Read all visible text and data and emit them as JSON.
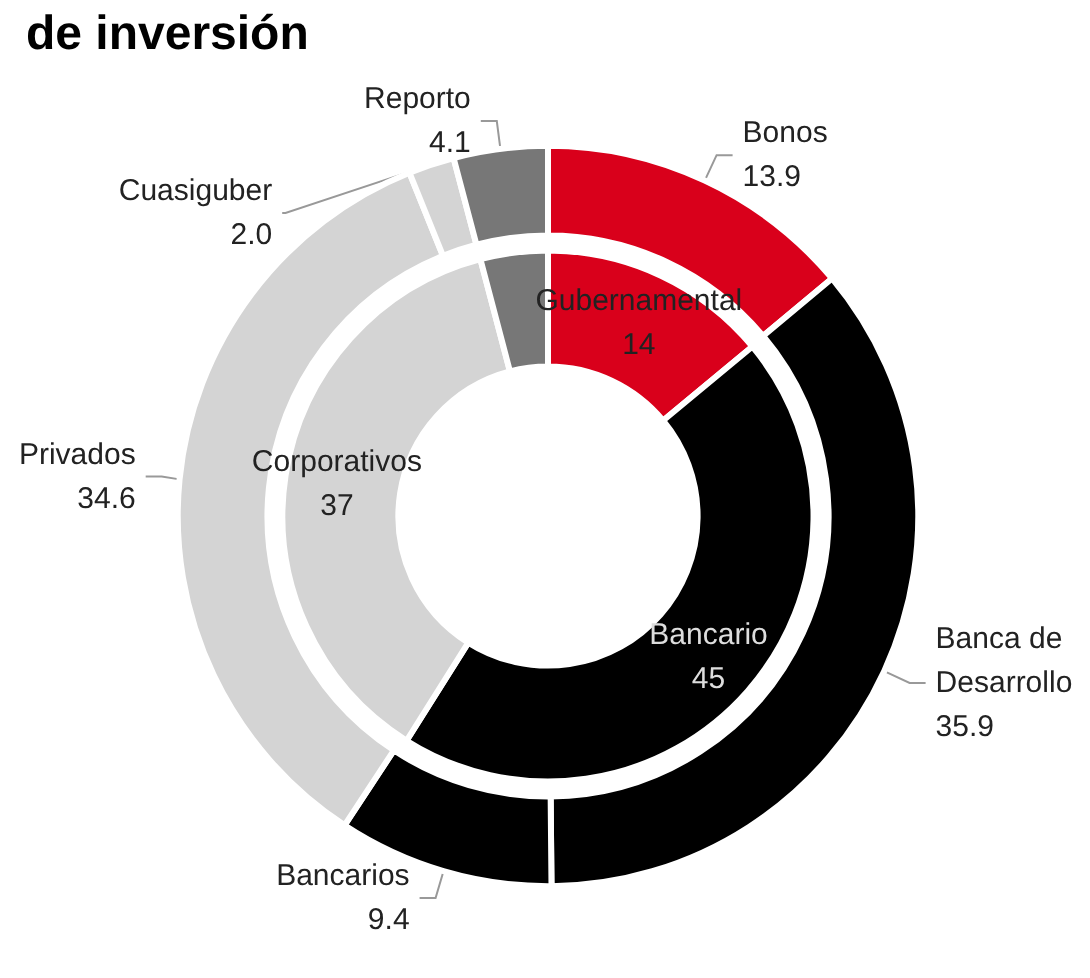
{
  "chart_data": [
    {
      "type": "donut",
      "title": "de inversión",
      "categories": [
        "Bonos",
        "Banca de Desarrollo",
        "Bancarios",
        "Privados",
        "Cuasiguber",
        "Reporto"
      ],
      "values": [
        13.9,
        35.9,
        9.4,
        34.6,
        2.0,
        4.1
      ],
      "colors": [
        "#d9001b",
        "#000000",
        "#000000",
        "#d4d4d4",
        "#d4d4d4",
        "#777777"
      ],
      "value_labels": [
        "13.9",
        "35.9",
        "9.4",
        "34.6",
        "2.0",
        "4.1"
      ]
    },
    {
      "type": "donut",
      "categories": [
        "Gubernamental",
        "Bancario",
        "Corporativos",
        null
      ],
      "values": [
        14,
        45,
        37,
        4.1
      ],
      "colors": [
        "#d9001b",
        "#000000",
        "#d4d4d4",
        "#777777"
      ],
      "value_labels": [
        "14",
        "45",
        "37",
        null
      ]
    }
  ]
}
